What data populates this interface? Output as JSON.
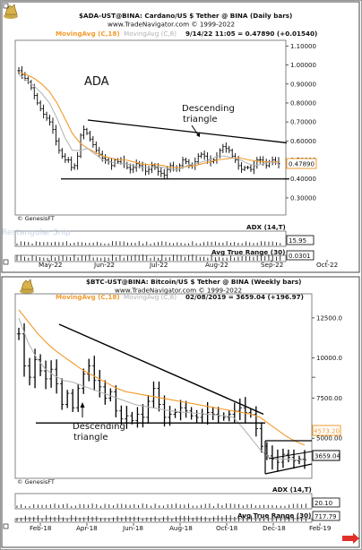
{
  "colors": {
    "ma_c18": "#f39a2c",
    "ma_c8": "#b0b0b0",
    "last_price_box": "#f39a2c",
    "bars": "#000000",
    "text": "#111111",
    "grid": "#c8c8c8"
  },
  "icons": [
    "bull-logo-icon",
    "red-arrow-icon"
  ],
  "watermark": "Rectangular Snip",
  "chart_data": [
    {
      "type": "ohlc",
      "id": "ada",
      "symbol_title": "$ADA-UST@BINA: Cardano/US $ Tether @ BINA  (Daily bars)",
      "website": "www.TradeNavigator.com © 1999-2022",
      "legend": {
        "ma1": "MovingAvg (C,18)",
        "ma2": "MovingAvg (C,8)",
        "readout": "9/14/22 11:05 = 0.47890 (+0.01540)"
      },
      "symbol_label": "ADA",
      "pattern_label": "Descending\ntriangle",
      "copyright": "© GenesisFT",
      "last_price": "0.47890",
      "y_ticks": [
        "1.10000",
        "1.00000",
        "0.90000",
        "0.80000",
        "0.70000",
        "0.60000",
        "0.50000",
        "0.40000",
        "0.30000"
      ],
      "ylim": [
        0.21,
        1.13
      ],
      "x_ticks": [
        "May-22",
        "Jun-22",
        "Jul-22",
        "Aug-22",
        "Sep-22",
        "Oct-22"
      ],
      "trendline_upper": [
        [
          0.745,
          0.71
        ],
        [
          0.9,
          0.59
        ]
      ],
      "trendline_lower": [
        [
          0.72,
          0.4
        ],
        [
          0.99,
          0.4
        ]
      ],
      "series": [
        {
          "name": "MovingAvg (C,18)",
          "values": [
            0.96,
            0.95,
            0.93,
            0.9,
            0.86,
            0.8,
            0.72,
            0.64,
            0.59,
            0.56,
            0.54,
            0.52,
            0.51,
            0.5,
            0.5,
            0.49,
            0.48,
            0.475,
            0.475,
            0.47,
            0.46,
            0.46,
            0.465,
            0.47,
            0.48,
            0.49,
            0.5,
            0.505,
            0.51,
            0.51,
            0.5,
            0.495,
            0.49,
            0.49,
            0.49
          ]
        },
        {
          "name": "MovingAvg (C,8)",
          "values": [
            0.95,
            0.92,
            0.89,
            0.85,
            0.8,
            0.72,
            0.62,
            0.55,
            0.55,
            0.56,
            0.53,
            0.5,
            0.49,
            0.48,
            0.48,
            0.47,
            0.46,
            0.46,
            0.465,
            0.46,
            0.45,
            0.45,
            0.47,
            0.48,
            0.49,
            0.5,
            0.52,
            0.52,
            0.51,
            0.5,
            0.48,
            0.47,
            0.48,
            0.49,
            0.48
          ]
        }
      ],
      "ohlc_closes": [
        0.97,
        0.95,
        0.93,
        0.91,
        0.88,
        0.84,
        0.8,
        0.77,
        0.74,
        0.72,
        0.7,
        0.66,
        0.6,
        0.55,
        0.52,
        0.5,
        0.5,
        0.46,
        0.47,
        0.52,
        0.63,
        0.66,
        0.64,
        0.61,
        0.58,
        0.55,
        0.53,
        0.51,
        0.5,
        0.49,
        0.47,
        0.5,
        0.49,
        0.5,
        0.48,
        0.46,
        0.45,
        0.46,
        0.48,
        0.47,
        0.46,
        0.44,
        0.45,
        0.47,
        0.46,
        0.44,
        0.43,
        0.42,
        0.45,
        0.47,
        0.46,
        0.45,
        0.47,
        0.5,
        0.49,
        0.47,
        0.47,
        0.49,
        0.52,
        0.53,
        0.52,
        0.5,
        0.49,
        0.5,
        0.52,
        0.55,
        0.57,
        0.56,
        0.55,
        0.52,
        0.5,
        0.47,
        0.45,
        0.46,
        0.46,
        0.45,
        0.47,
        0.5,
        0.5,
        0.49,
        0.47,
        0.49,
        0.5,
        0.49,
        0.48
      ],
      "indicators": [
        {
          "label": "ADX (14,T)",
          "value": "15.95"
        },
        {
          "label": "Avg True Range (30)",
          "value": "0.0301"
        }
      ]
    },
    {
      "type": "ohlc",
      "id": "btc",
      "symbol_title": "$BTC-UST@BINA: Bitcoin/US $ Tether @ BINA  (Weekly bars)",
      "website": "www.TradeNavigator.com © 1999-2022",
      "legend": {
        "ma1": "MovingAvg (C,18)",
        "ma2": "MovingAvg (C,8)",
        "readout": "02/08/2019 = 3659.04 (+196.97)"
      },
      "pattern_label": "Descending\ntriangle",
      "copyright": "© GenesisFT",
      "last_price": "3659.04",
      "ma_last": "4573.20",
      "y_ticks": [
        "12500.0",
        "10000.0",
        "7500.00",
        "5000.00"
      ],
      "ylim": [
        2500,
        14000
      ],
      "x_ticks": [
        "Feb-18",
        "Apr-18",
        "Jun-18",
        "Aug-18",
        "Oct-18",
        "Dec-18",
        "Feb-19"
      ],
      "series": [
        {
          "name": "MovingAvg (C,18)",
          "values": [
            13000,
            12300,
            11600,
            11000,
            10500,
            10100,
            9700,
            9300,
            9000,
            8700,
            8400,
            8100,
            7900,
            7800,
            7700,
            7600,
            7500,
            7400,
            7300,
            7200,
            7100,
            7000,
            6900,
            6800,
            6700,
            6600,
            6500,
            6300,
            5900,
            5500,
            5100,
            4800,
            4573
          ]
        },
        {
          "name": "MovingAvg (C,8)",
          "values": [
            12500,
            11000,
            10000,
            9300,
            8900,
            8600,
            8500,
            8300,
            8100,
            7900,
            7700,
            7500,
            7300,
            7100,
            7000,
            6900,
            6800,
            6700,
            6650,
            6600,
            6550,
            6500,
            6450,
            6400,
            6300,
            5700,
            5000,
            4300,
            3800,
            3700,
            3700,
            3650,
            3650
          ]
        }
      ],
      "ohlc_closes": [
        11500,
        9500,
        8800,
        9900,
        9200,
        8700,
        9300,
        8400,
        7100,
        7800,
        6900,
        8100,
        9000,
        9500,
        8600,
        8200,
        7500,
        7900,
        6700,
        6200,
        6400,
        6100,
        6500,
        6300,
        7300,
        8100,
        7100,
        6300,
        6500,
        6600,
        6900,
        6700,
        6400,
        6300,
        6500,
        6600,
        6500,
        6400,
        6300,
        6500,
        6700,
        6900,
        6600,
        6500,
        5600,
        4500,
        3900,
        3700,
        3500,
        4000,
        3800,
        3600,
        3700,
        3659
      ],
      "indicators": [
        {
          "label": "ADX (14,T)",
          "value": "20.10"
        },
        {
          "label": "Avg True Range (30)",
          "value": "717.79"
        }
      ]
    }
  ]
}
